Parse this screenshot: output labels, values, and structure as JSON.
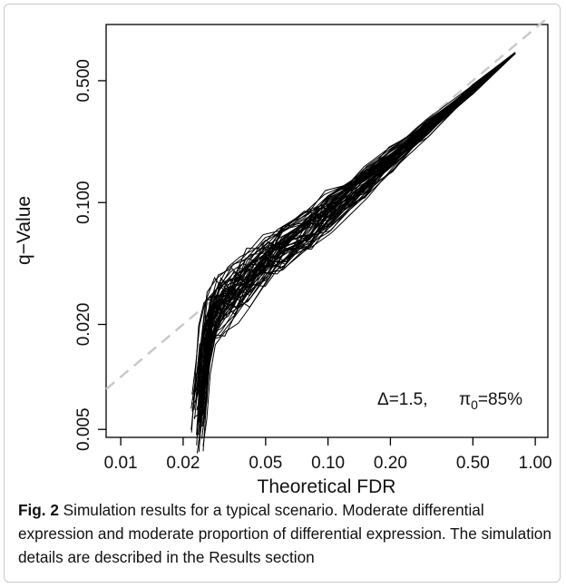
{
  "caption": {
    "label": "Fig. 2",
    "text": " Simulation results for a typical scenario. Moderate differential expression and moderate proportion of differential expression. The simulation details are described in the Results section"
  },
  "chart_data": {
    "type": "line",
    "xlabel": "Theoretical FDR",
    "ylabel": "q−Value",
    "x_scale": "log",
    "y_scale": "log",
    "xlim": [
      0.0085,
      1.15
    ],
    "ylim": [
      0.0045,
      1.05
    ],
    "x_ticks": [
      0.01,
      0.02,
      0.05,
      0.1,
      0.2,
      0.5,
      1.0
    ],
    "x_tick_labels": [
      "0.01",
      "0.02",
      "0.05",
      "0.10",
      "0.20",
      "0.50",
      "1.00"
    ],
    "y_ticks": [
      0.005,
      0.02,
      0.1,
      0.5
    ],
    "y_tick_labels": [
      "0.005",
      "0.020",
      "0.100",
      "0.500"
    ],
    "reference_line": {
      "style": "dashed",
      "color": "#c8c8c8",
      "points": [
        [
          0.0085,
          0.0085
        ],
        [
          1.15,
          1.15
        ]
      ]
    },
    "annotation": {
      "delta_label": "Δ=1.5,",
      "pi_symbol": "π",
      "pi_subscript": "0",
      "pi_value": "=85%"
    },
    "series_color": "#000000",
    "series_count": 60,
    "series_profile": [
      [
        0.0235,
        0.0058
      ],
      [
        0.0245,
        0.0085
      ],
      [
        0.0255,
        0.014
      ],
      [
        0.027,
        0.021
      ],
      [
        0.03,
        0.026
      ],
      [
        0.035,
        0.031
      ],
      [
        0.04,
        0.036
      ],
      [
        0.05,
        0.046
      ],
      [
        0.06,
        0.055
      ],
      [
        0.08,
        0.071
      ],
      [
        0.1,
        0.088
      ],
      [
        0.15,
        0.132
      ],
      [
        0.2,
        0.178
      ],
      [
        0.3,
        0.268
      ],
      [
        0.5,
        0.445
      ],
      [
        0.8,
        0.72
      ]
    ]
  }
}
